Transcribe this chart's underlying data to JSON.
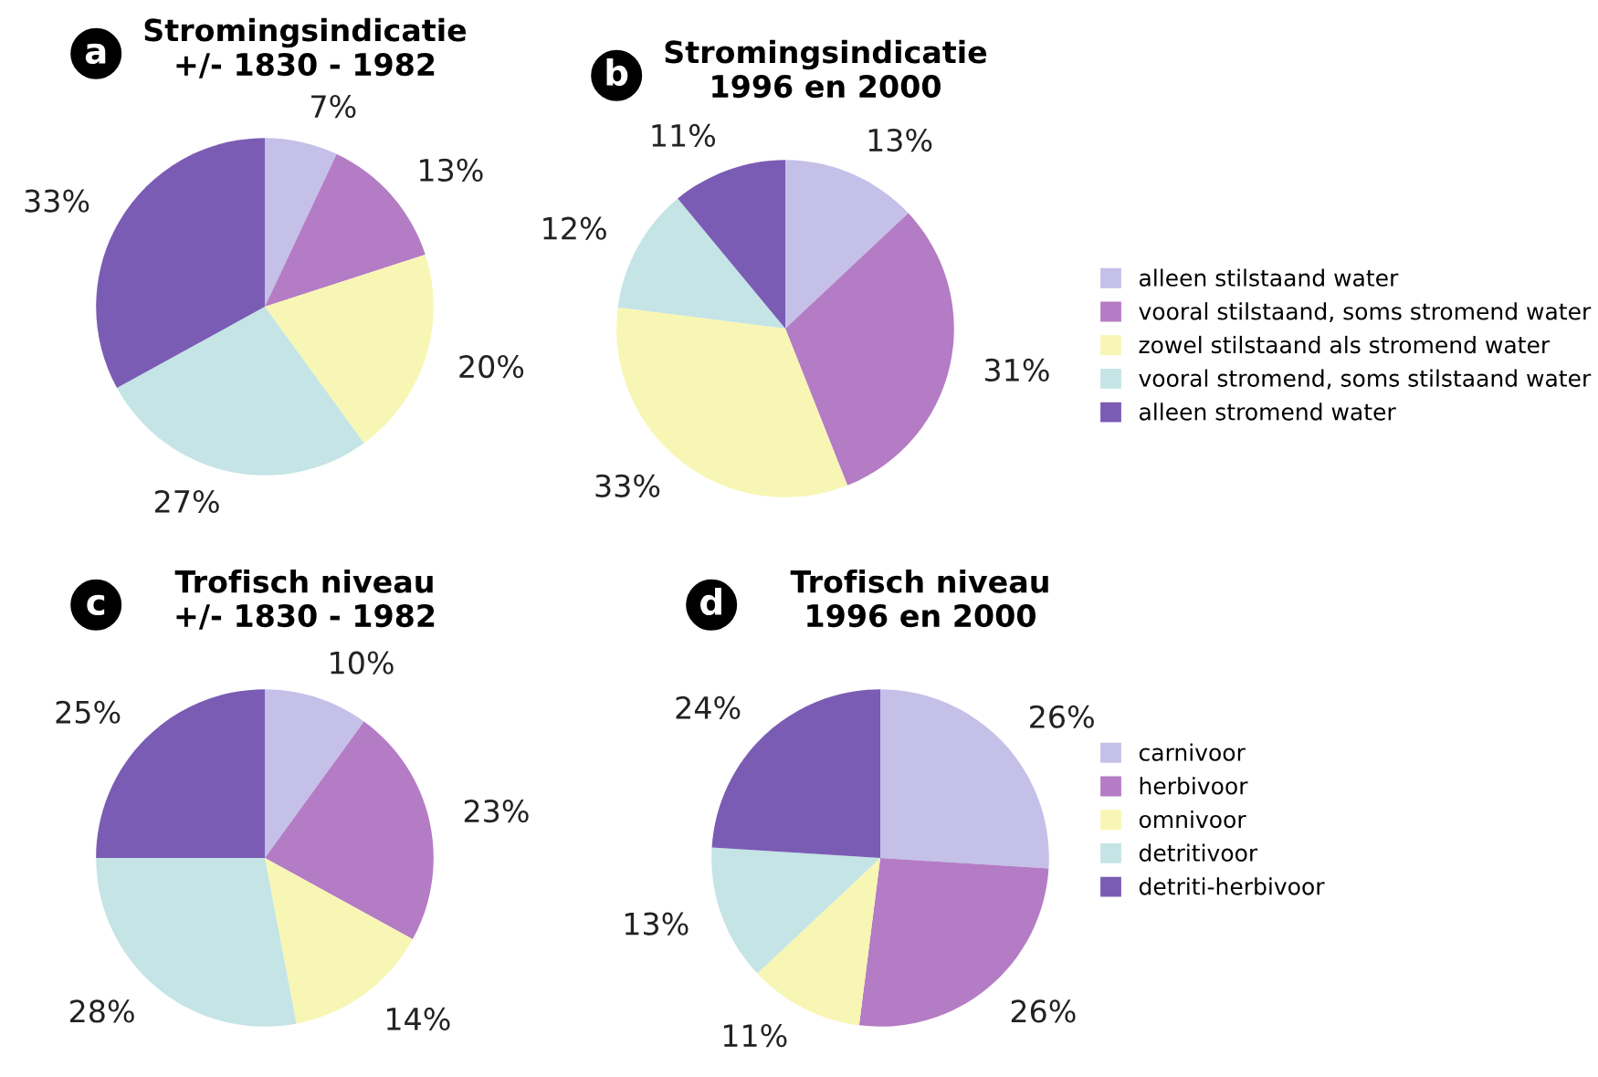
{
  "chart_data": [
    {
      "type": "pie",
      "title": "Stromingsindicatie\n+/- 1830 - 1982",
      "annotations": [
        "a"
      ],
      "legend": "right",
      "categories": [
        "alleen stilstaand water",
        "vooral stilstaand, soms stromend water",
        "zowel stilstaand als stromend water",
        "vooral stromend, soms stilstaand water",
        "alleen stromend water"
      ],
      "values": [
        7,
        13,
        20,
        27,
        33
      ],
      "value_labels": [
        "7%",
        "13%",
        "20%",
        "27%",
        "33%"
      ],
      "colors": [
        "#c4c0e8",
        "#b47cc4",
        "#f8f6b4",
        "#c4e4e6",
        "#7a5cb4"
      ]
    },
    {
      "type": "pie",
      "title": "Stromingsindicatie\n1996 en 2000",
      "annotations": [
        "b"
      ],
      "categories": [
        null,
        null,
        null,
        null,
        null
      ],
      "values": [
        13,
        31,
        33,
        12,
        11
      ],
      "value_labels": [
        "13%",
        "31%",
        "33%",
        "12%",
        "11%"
      ],
      "colors": [
        "#c4c0e8",
        "#b47cc4",
        "#f8f6b4",
        "#c4e4e6",
        "#7a5cb4"
      ]
    },
    {
      "type": "pie",
      "title": "Trofisch niveau\n+/- 1830 - 1982",
      "annotations": [
        "c"
      ],
      "legend": "right",
      "categories": [
        "carnivoor",
        "herbivoor",
        "omnivoor",
        "detritivoor",
        "detriti-herbivoor"
      ],
      "values": [
        10,
        23,
        14,
        28,
        25
      ],
      "value_labels": [
        "10%",
        "23%",
        "14%",
        "28%",
        "25%"
      ],
      "colors": [
        "#c4c0e8",
        "#b47cc4",
        "#f8f6b4",
        "#c4e4e6",
        "#7a5cb4"
      ]
    },
    {
      "type": "pie",
      "title": "Trofisch niveau\n1996 en 2000",
      "annotations": [
        "d"
      ],
      "categories": [
        null,
        null,
        null,
        null,
        null
      ],
      "values": [
        26,
        26,
        11,
        13,
        24
      ],
      "value_labels": [
        "26%",
        "26%",
        "11%",
        "13%",
        "24%"
      ],
      "colors": [
        "#c4c0e8",
        "#b47cc4",
        "#f8f6b4",
        "#c4e4e6",
        "#7a5cb4"
      ]
    }
  ]
}
